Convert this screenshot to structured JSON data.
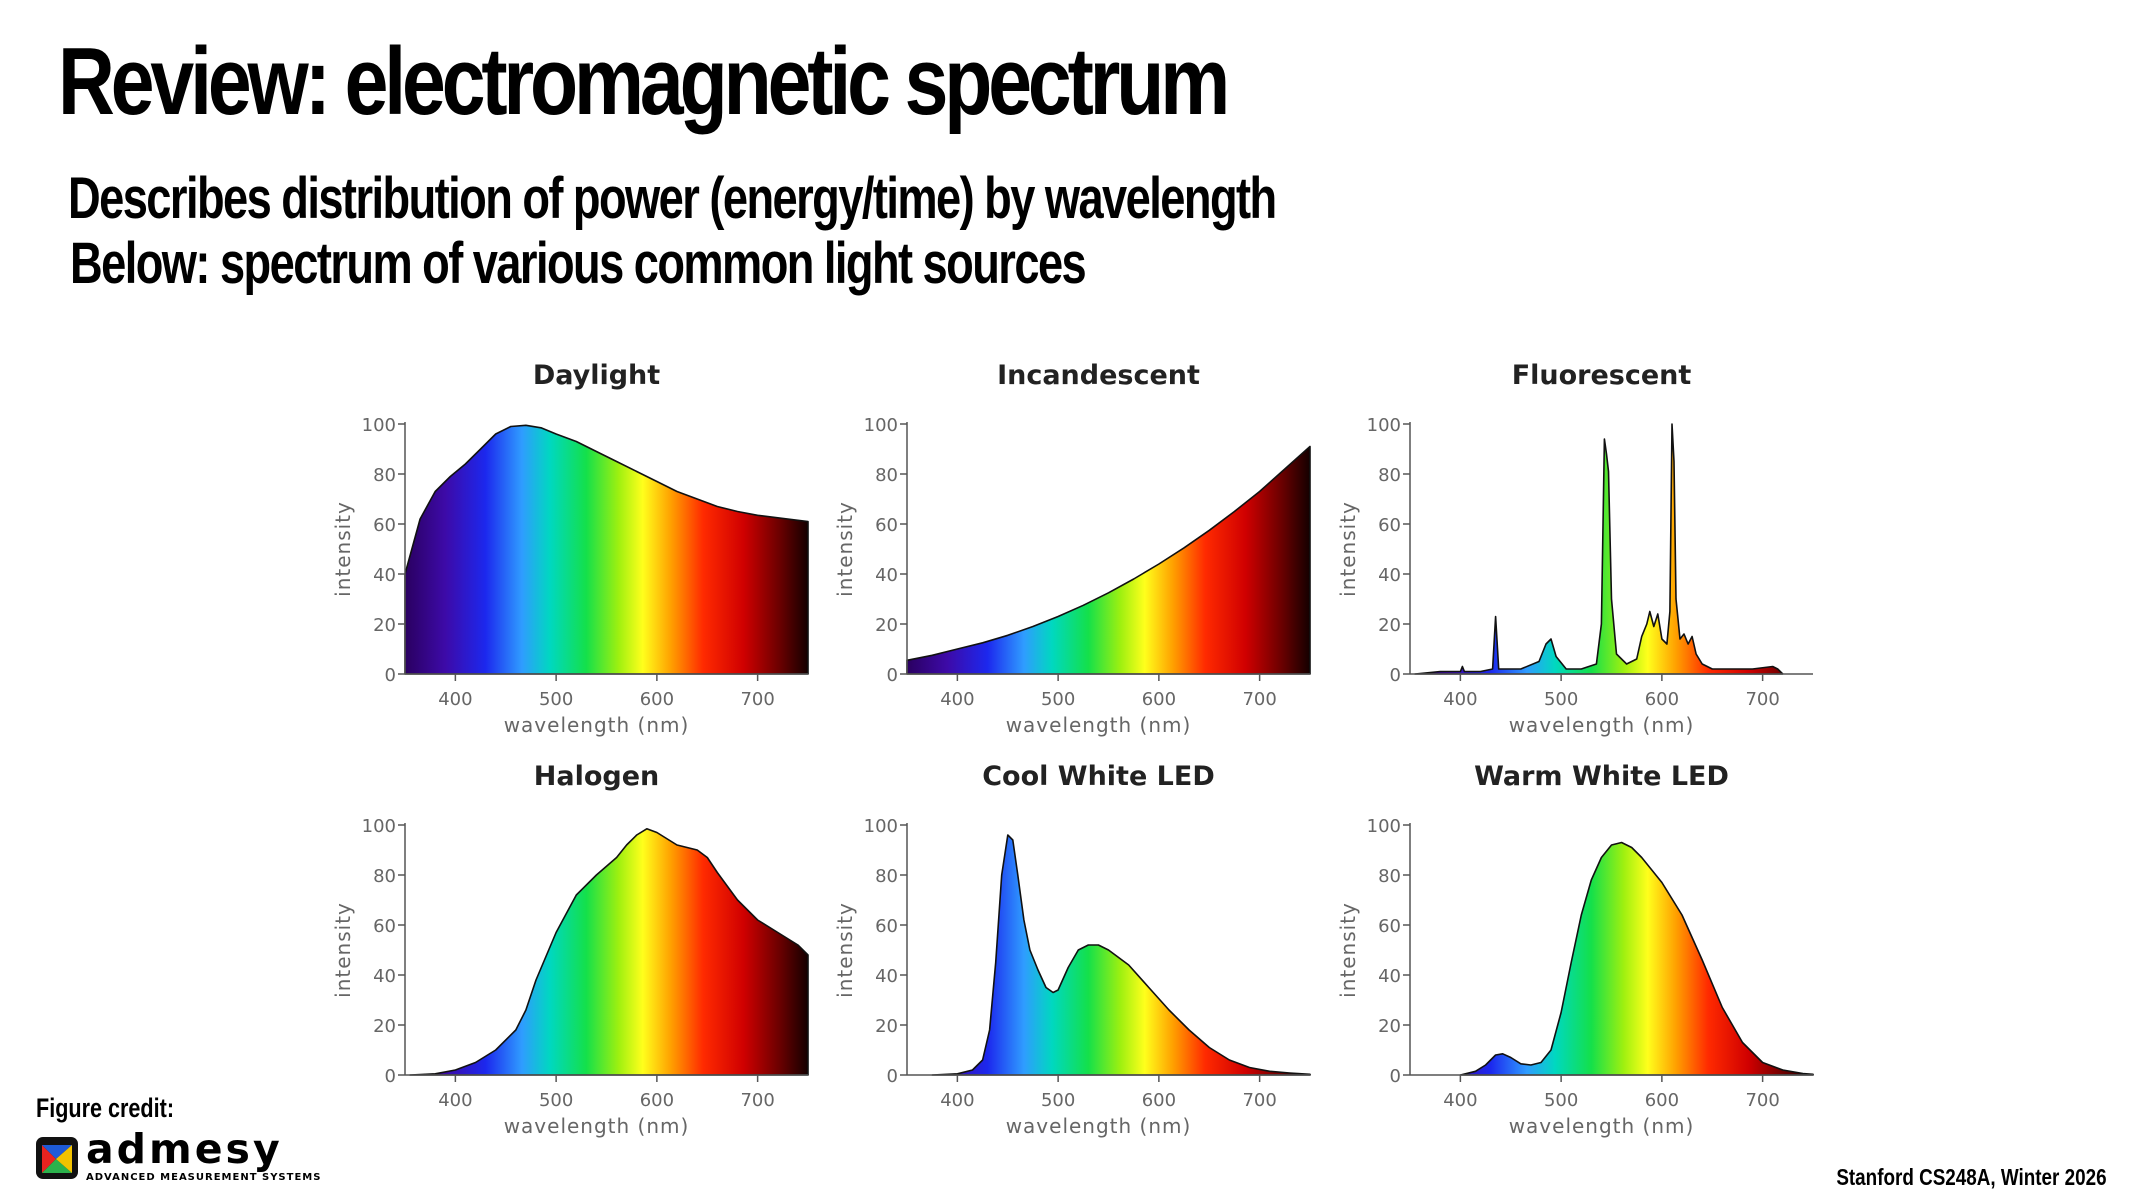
{
  "slide": {
    "title": "Review: electromagnetic spectrum",
    "bullets": [
      "Describes distribution of power (energy/time) by wavelength",
      "Below: spectrum of various common light sources"
    ],
    "figure_credit": "Figure credit:",
    "logo": {
      "name": "admesy",
      "tagline": "ADVANCED MEASUREMENT SYSTEMS"
    },
    "footer": "Stanford CS248A, Winter 2026"
  },
  "chart_data": [
    {
      "type": "area",
      "title": "Daylight",
      "xlabel": "wavelength (nm)",
      "ylabel": "intensity",
      "xlim": [
        350,
        750
      ],
      "ylim": [
        0,
        100
      ],
      "xticks": [
        400,
        500,
        600,
        700
      ],
      "yticks": [
        0,
        20,
        40,
        60,
        80,
        100
      ],
      "x": [
        350,
        365,
        380,
        395,
        410,
        425,
        440,
        455,
        470,
        485,
        500,
        520,
        540,
        560,
        580,
        600,
        620,
        640,
        660,
        680,
        700,
        720,
        740,
        750
      ],
      "values": [
        40,
        62,
        73,
        79,
        84,
        90,
        96,
        99,
        99.5,
        98.5,
        96,
        93,
        89,
        85,
        81,
        77,
        73,
        70,
        67,
        65,
        63.5,
        62.5,
        61.5,
        61
      ]
    },
    {
      "type": "area",
      "title": "Incandescent",
      "xlabel": "wavelength (nm)",
      "ylabel": "intensity",
      "xlim": [
        350,
        750
      ],
      "ylim": [
        0,
        100
      ],
      "xticks": [
        400,
        500,
        600,
        700
      ],
      "yticks": [
        0,
        20,
        40,
        60,
        80,
        100
      ],
      "x": [
        350,
        375,
        400,
        425,
        450,
        475,
        500,
        525,
        550,
        575,
        600,
        625,
        650,
        675,
        700,
        725,
        750
      ],
      "values": [
        5.5,
        7.5,
        10,
        12.5,
        15.5,
        19,
        23,
        27.5,
        32.5,
        38,
        44,
        50.5,
        57.5,
        65,
        73,
        82,
        91
      ]
    },
    {
      "type": "area",
      "title": "Fluorescent",
      "xlabel": "wavelength (nm)",
      "ylabel": "intensity",
      "xlim": [
        350,
        750
      ],
      "ylim": [
        0,
        100
      ],
      "xticks": [
        400,
        500,
        600,
        700
      ],
      "yticks": [
        0,
        20,
        40,
        60,
        80,
        100
      ],
      "x": [
        355,
        380,
        400,
        402,
        404,
        420,
        432,
        435,
        438,
        460,
        478,
        485,
        490,
        495,
        505,
        520,
        535,
        540,
        543,
        545,
        547,
        550,
        555,
        565,
        575,
        580,
        585,
        588,
        592,
        596,
        600,
        605,
        608,
        610,
        612,
        614,
        618,
        622,
        626,
        630,
        634,
        640,
        650,
        670,
        690,
        710,
        715,
        720
      ],
      "values": [
        0,
        1,
        1,
        3,
        1,
        1,
        2,
        23,
        2,
        2,
        5,
        12,
        14,
        7,
        2,
        2,
        4,
        20,
        94,
        88,
        81,
        30,
        8,
        4,
        6,
        15,
        20,
        25,
        19,
        24,
        14,
        12,
        25,
        100,
        85,
        30,
        14,
        16,
        12,
        15,
        8,
        4,
        2,
        2,
        2,
        3,
        2,
        0
      ]
    },
    {
      "type": "area",
      "title": "Halogen",
      "xlabel": "wavelength (nm)",
      "ylabel": "intensity",
      "xlim": [
        350,
        750
      ],
      "ylim": [
        0,
        100
      ],
      "xticks": [
        400,
        500,
        600,
        700
      ],
      "yticks": [
        0,
        20,
        40,
        60,
        80,
        100
      ],
      "x": [
        355,
        380,
        400,
        420,
        440,
        460,
        470,
        480,
        500,
        520,
        540,
        560,
        570,
        580,
        590,
        600,
        620,
        640,
        650,
        660,
        680,
        700,
        720,
        740,
        750
      ],
      "values": [
        0,
        0.5,
        2,
        5,
        10,
        18,
        26,
        38,
        57,
        72,
        80,
        87,
        92,
        96,
        98.5,
        97,
        92,
        90,
        87,
        81,
        70,
        62,
        57,
        52,
        48
      ]
    },
    {
      "type": "area",
      "title": "Cool White LED",
      "xlabel": "wavelength (nm)",
      "ylabel": "intensity",
      "xlim": [
        350,
        750
      ],
      "ylim": [
        0,
        100
      ],
      "xticks": [
        400,
        500,
        600,
        700
      ],
      "yticks": [
        0,
        20,
        40,
        60,
        80,
        100
      ],
      "x": [
        375,
        400,
        415,
        425,
        432,
        438,
        444,
        450,
        455,
        460,
        466,
        472,
        480,
        488,
        495,
        500,
        510,
        520,
        530,
        540,
        550,
        570,
        590,
        610,
        630,
        650,
        670,
        690,
        710,
        730,
        750
      ],
      "values": [
        0,
        0.5,
        2,
        6,
        18,
        45,
        80,
        96,
        94,
        80,
        62,
        50,
        42,
        35,
        33,
        34,
        43,
        50,
        52,
        52,
        50,
        44,
        35,
        26,
        18,
        11,
        6,
        3,
        1.5,
        0.8,
        0.3
      ]
    },
    {
      "type": "area",
      "title": "Warm White LED",
      "xlabel": "wavelength (nm)",
      "ylabel": "intensity",
      "xlim": [
        350,
        750
      ],
      "ylim": [
        0,
        100
      ],
      "xticks": [
        400,
        500,
        600,
        700
      ],
      "yticks": [
        0,
        20,
        40,
        60,
        80,
        100
      ],
      "x": [
        400,
        415,
        425,
        435,
        442,
        450,
        460,
        470,
        480,
        490,
        500,
        510,
        520,
        530,
        540,
        550,
        560,
        570,
        580,
        600,
        620,
        640,
        660,
        680,
        700,
        720,
        740,
        750
      ],
      "values": [
        0,
        1.5,
        4,
        8,
        8.5,
        7,
        4.5,
        4,
        5,
        10,
        25,
        45,
        64,
        78,
        87,
        92,
        93,
        91,
        87,
        77,
        64,
        46,
        27,
        13,
        5,
        2,
        0.6,
        0.3
      ]
    }
  ]
}
